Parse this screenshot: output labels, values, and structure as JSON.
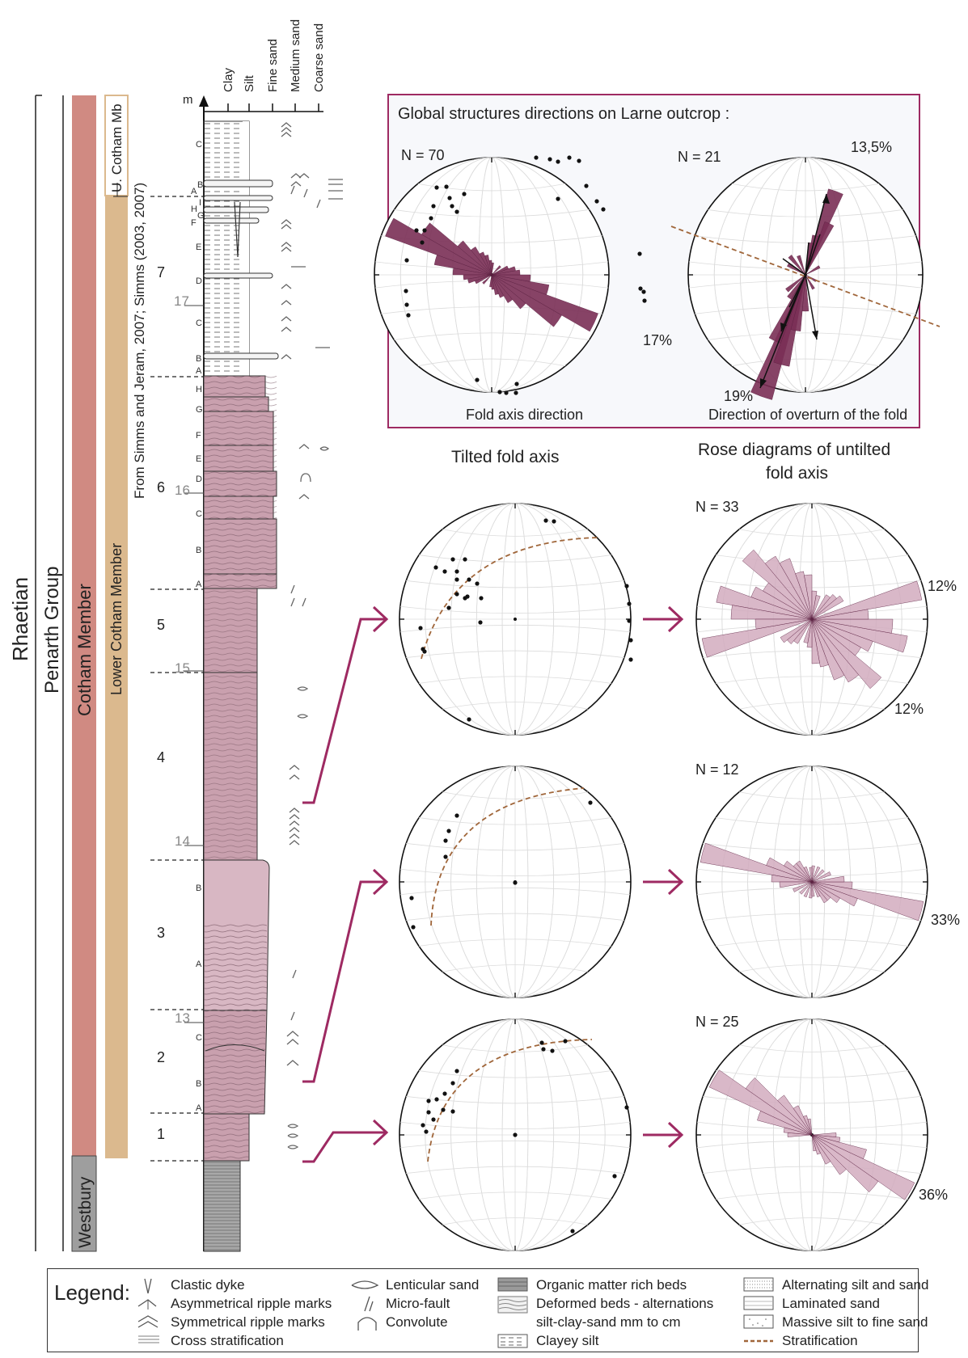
{
  "strat": {
    "rhaetian": "Rhaetian",
    "penarth": "Penarth Group",
    "cotham": "Cotham Member",
    "westbury": "Westbury",
    "lower_cotham": "Lower Cotham Member",
    "upper_cotham": "U. Cotham Mb",
    "source": "From Simms and Jeram, 2007; Simms (2003, 2007)",
    "unit": "m",
    "grain": [
      "Clay",
      "Silt",
      "Fine sand",
      "Medium sand",
      "Coarse sand"
    ],
    "depths": [
      "17",
      "16",
      "15",
      "14",
      "13"
    ],
    "beds": [
      "7",
      "6",
      "5",
      "4",
      "3",
      "2",
      "1"
    ],
    "subbeds": {
      "b7": [
        "C",
        "B",
        "A",
        "I",
        "H",
        "G",
        "F",
        "E",
        "D",
        "C",
        "B",
        "A"
      ],
      "b6": [
        "H",
        "G",
        "F",
        "E",
        "D",
        "C",
        "B",
        "A"
      ],
      "b3": [
        "B",
        "A"
      ],
      "b2": [
        "C",
        "B",
        "A"
      ]
    }
  },
  "global": {
    "title": "Global structures directions on Larne outcrop :",
    "left": {
      "n": "N = 70",
      "pct": "17%",
      "caption": "Fold axis direction"
    },
    "right": {
      "n": "N = 21",
      "pct_top": "13,5%",
      "pct_bottom": "19%",
      "caption": "Direction of overturn of the fold"
    }
  },
  "headers": {
    "tilted": "Tilted fold axis",
    "rose": [
      "Rose diagrams of untilted",
      "fold axis"
    ]
  },
  "roses": [
    {
      "n": "N = 33",
      "pct1": "12%",
      "pct2": "12%"
    },
    {
      "n": "N = 12",
      "pct1": "33%"
    },
    {
      "n": "N = 25",
      "pct1": "36%"
    }
  ],
  "legend": {
    "title": "Legend:",
    "items": [
      "Clastic dyke",
      "Asymmetrical ripple marks",
      "Symmetrical ripple marks",
      "Cross stratification",
      "Lenticular sand",
      "Micro-fault",
      "Convolute",
      "Organic matter rich beds",
      "Deformed beds - alternations",
      "silt-clay-sand mm to cm",
      "Clayey silt",
      "Alternating silt and sand",
      "Laminated sand",
      "Massive silt to fine sand",
      "Stratification"
    ]
  },
  "colors": {
    "cotham": "#d08a82",
    "lower_cotham": "#dbb98e",
    "westbury": "#9e9e9e",
    "bed_fill": "#c9a0ae",
    "accent": "#9e2a62",
    "rose_dark": "#7a2f55",
    "rose_light": "#d2abbe",
    "strat": "#a0663a"
  }
}
